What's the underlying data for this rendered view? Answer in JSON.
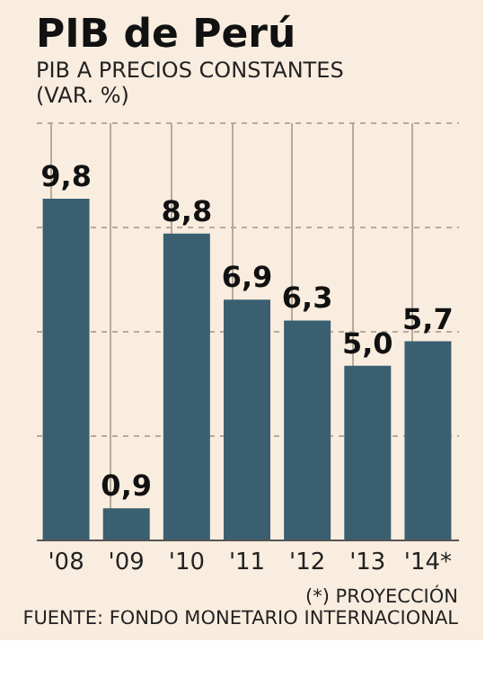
{
  "chart_data": {
    "type": "bar",
    "title": "PIB de Perú",
    "subtitle": "PIB A PRECIOS CONSTANTES (VAR. %)",
    "categories": [
      "'08",
      "'09",
      "'10",
      "'11",
      "'12",
      "'13",
      "'14*"
    ],
    "values": [
      9.8,
      0.9,
      8.8,
      6.9,
      6.3,
      5.0,
      5.7
    ],
    "value_labels": [
      "9,8",
      "0,9",
      "8,8",
      "6,9",
      "6,3",
      "5,0",
      "5,7"
    ],
    "color": "#3a5f70",
    "ylim": [
      0,
      12
    ],
    "yticks": [
      {
        "value": 0,
        "label": null
      },
      {
        "value": 3,
        "label": null
      },
      {
        "value": 6,
        "label": null
      },
      {
        "value": 9,
        "label": null
      },
      {
        "value": 12,
        "label": null
      }
    ],
    "tick_labels": "x",
    "grid": true,
    "annotations": [
      "(*) PROYECCIÓN",
      "FUENTE: FONDO MONETARIO INTERNACIONAL"
    ]
  }
}
